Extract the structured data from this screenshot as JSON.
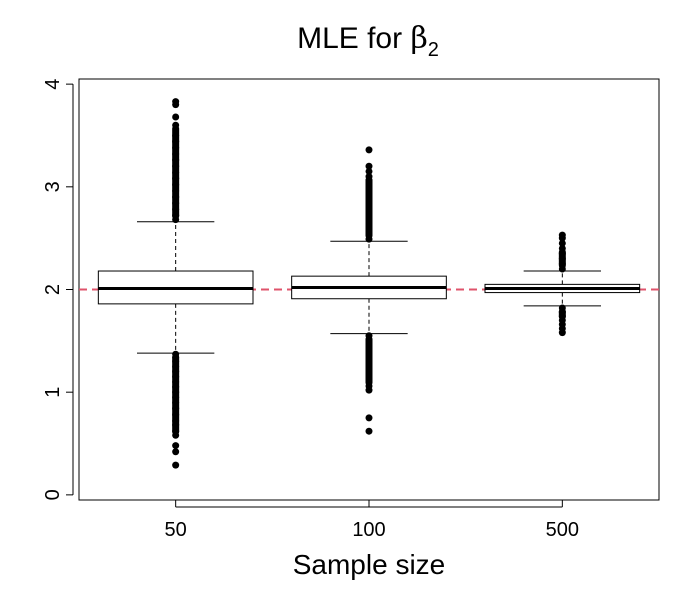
{
  "chart_data": {
    "type": "box",
    "title": "MLE for ",
    "title_symbol": "β",
    "title_subscript": "2",
    "xlabel": "Sample size",
    "ylabel": "",
    "categories": [
      "50",
      "100",
      "500"
    ],
    "yticks": [
      "0",
      "1",
      "2",
      "3",
      "4"
    ],
    "ylim": [
      -0.05,
      4.05
    ],
    "reference_line": {
      "y": 2,
      "color": "#DF536B",
      "style": "dashed"
    },
    "boxes": [
      {
        "category": "50",
        "q1": 1.86,
        "median": 2.01,
        "q3": 2.18,
        "whisker_low": 1.38,
        "whisker_high": 2.66,
        "outliers_low": [
          0.29,
          0.42,
          0.48,
          0.58,
          0.62,
          0.68,
          0.72,
          0.78,
          0.84,
          0.9,
          0.95,
          1.0,
          1.05,
          1.1,
          1.15,
          1.2,
          1.25,
          1.3,
          1.34,
          1.37
        ],
        "outliers_high": [
          2.68,
          2.72,
          2.78,
          2.84,
          2.9,
          2.96,
          3.02,
          3.08,
          3.14,
          3.2,
          3.26,
          3.32,
          3.38,
          3.44,
          3.5,
          3.6,
          3.68,
          3.8,
          3.83
        ]
      },
      {
        "category": "100",
        "q1": 1.91,
        "median": 2.02,
        "q3": 2.13,
        "whisker_low": 1.57,
        "whisker_high": 2.47,
        "outliers_low": [
          0.62,
          0.75,
          1.02,
          1.06,
          1.1,
          1.15,
          1.2,
          1.25,
          1.3,
          1.35,
          1.4,
          1.45,
          1.5,
          1.55
        ],
        "outliers_high": [
          2.49,
          2.54,
          2.6,
          2.66,
          2.72,
          2.78,
          2.84,
          2.9,
          2.96,
          3.02,
          3.1,
          3.15,
          3.2,
          3.36
        ]
      },
      {
        "category": "500",
        "q1": 1.97,
        "median": 2.01,
        "q3": 2.05,
        "whisker_low": 1.84,
        "whisker_high": 2.18,
        "outliers_low": [
          1.58,
          1.62,
          1.66,
          1.7,
          1.74,
          1.78,
          1.82
        ],
        "outliers_high": [
          2.2,
          2.25,
          2.3,
          2.35,
          2.4,
          2.45,
          2.5,
          2.53
        ]
      }
    ]
  }
}
